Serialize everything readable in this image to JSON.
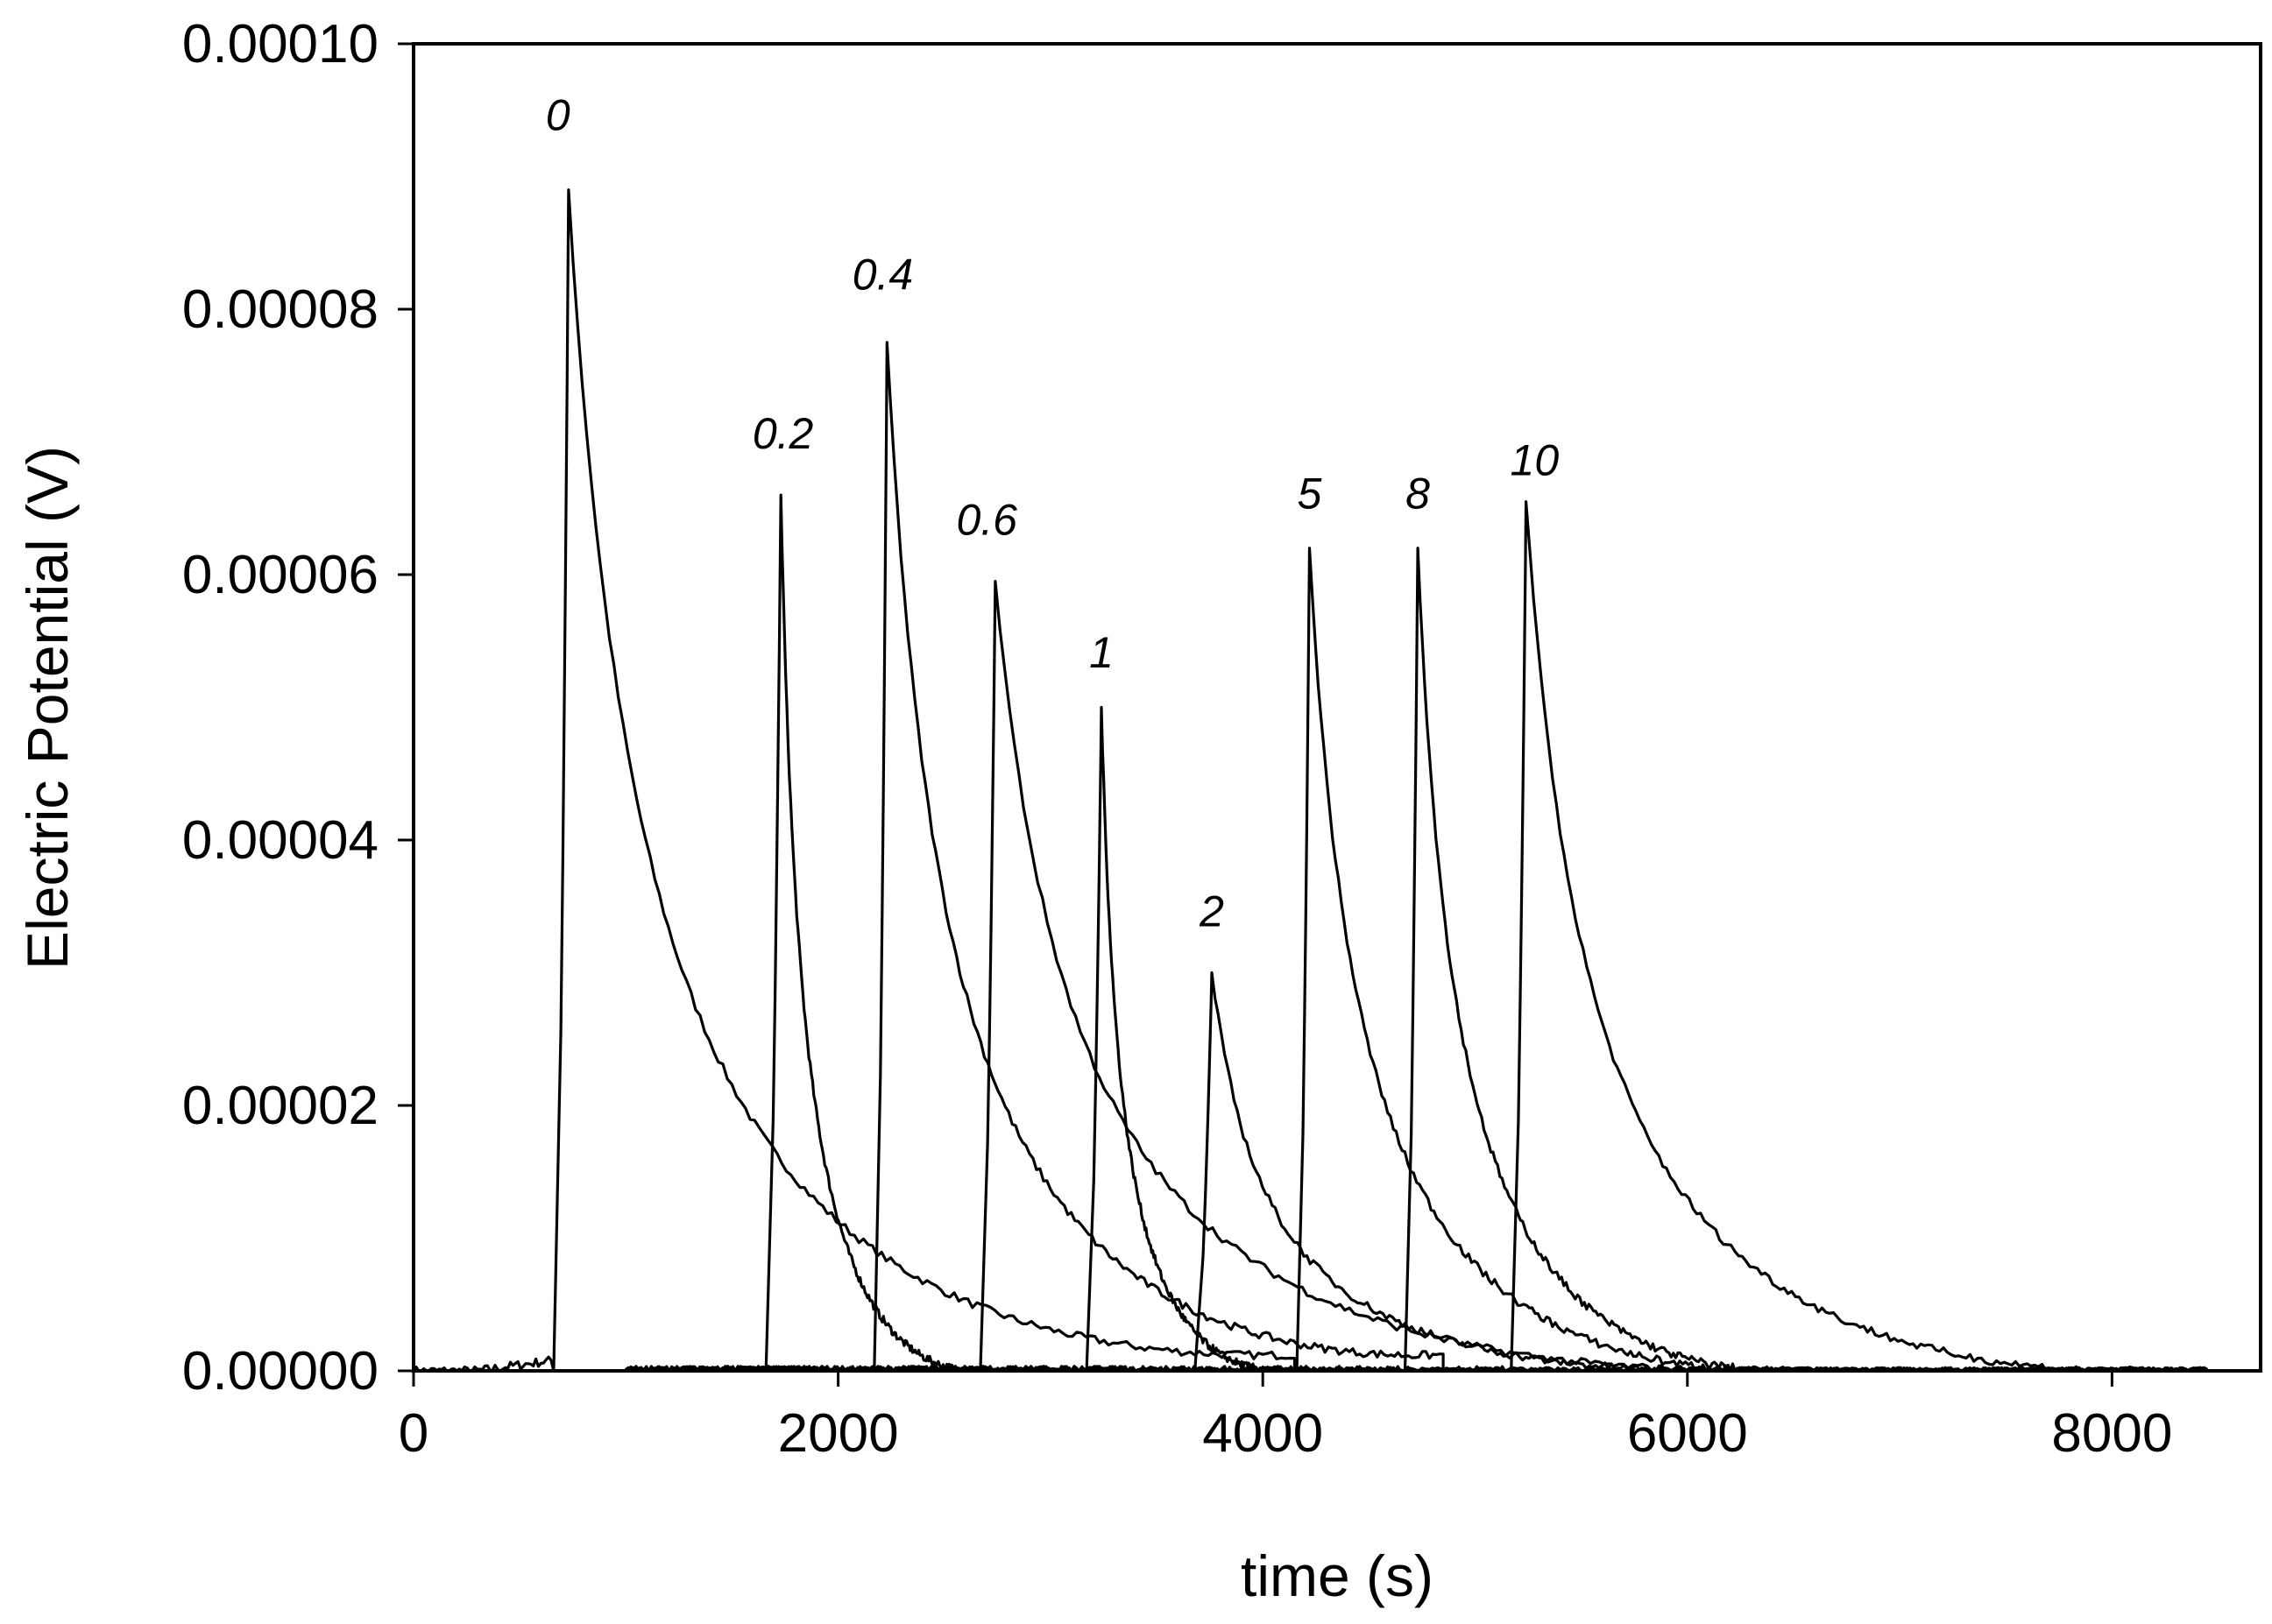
{
  "chart_data": {
    "type": "line",
    "title": "",
    "xlabel": "time (s)",
    "ylabel": "Electric Potential (V)",
    "xlim": [
      0,
      8700
    ],
    "ylim": [
      0,
      0.0001
    ],
    "x_ticks": [
      0,
      2000,
      4000,
      6000,
      8000
    ],
    "x_tick_labels": [
      "0",
      "2000",
      "4000",
      "6000",
      "8000"
    ],
    "y_ticks": [
      0,
      2e-05,
      4e-05,
      6e-05,
      8e-05,
      0.0001
    ],
    "y_tick_labels": [
      "0.00000",
      "0.00002",
      "0.00004",
      "0.00006",
      "0.00008",
      "0.00010"
    ],
    "grid": false,
    "legend": "none",
    "series": [
      {
        "name": "0",
        "rise_time": 660,
        "peak_time": 730,
        "peak_value": 8.9e-05,
        "end_time": 4150,
        "tail_value_at_end": 1.2e-06
      },
      {
        "name": "0.2",
        "rise_time": 1660,
        "peak_time": 1730,
        "peak_value": 6.6e-05,
        "end_time": 2650,
        "tail_value_at_end": 0.0
      },
      {
        "name": "0.4",
        "rise_time": 2170,
        "peak_time": 2230,
        "peak_value": 7.75e-05,
        "end_time": 4850,
        "tail_value_at_end": 1.2e-06
      },
      {
        "name": "0.6",
        "rise_time": 2670,
        "peak_time": 2740,
        "peak_value": 5.95e-05,
        "end_time": 6300,
        "tail_value_at_end": 0.0
      },
      {
        "name": "1",
        "rise_time": 3170,
        "peak_time": 3240,
        "peak_value": 5e-05,
        "end_time": 4080,
        "tail_value_at_end": 0.0
      },
      {
        "name": "2",
        "rise_time": 3680,
        "peak_time": 3760,
        "peak_value": 3e-05,
        "end_time": 6150,
        "tail_value_at_end": 0.0
      },
      {
        "name": "5",
        "rise_time": 4160,
        "peak_time": 4220,
        "peak_value": 6.2e-05,
        "end_time": 6400,
        "tail_value_at_end": 0.0
      },
      {
        "name": "8",
        "rise_time": 4670,
        "peak_time": 4730,
        "peak_value": 6.2e-05,
        "end_time": 6450,
        "tail_value_at_end": 0.0
      },
      {
        "name": "10",
        "rise_time": 5170,
        "peak_time": 5240,
        "peak_value": 6.55e-05,
        "end_time": 8100,
        "tail_value_at_end": 0.0
      }
    ],
    "peak_labels": [
      {
        "text": "0",
        "x": 680,
        "y": 9.35e-05
      },
      {
        "text": "0.2",
        "x": 1740,
        "y": 6.95e-05
      },
      {
        "text": "0.4",
        "x": 2210,
        "y": 8.15e-05
      },
      {
        "text": "0.6",
        "x": 2700,
        "y": 6.3e-05
      },
      {
        "text": "1",
        "x": 3240,
        "y": 5.3e-05
      },
      {
        "text": "2",
        "x": 3760,
        "y": 3.35e-05
      },
      {
        "text": "5",
        "x": 4220,
        "y": 6.5e-05
      },
      {
        "text": "8",
        "x": 4730,
        "y": 6.5e-05
      },
      {
        "text": "10",
        "x": 5280,
        "y": 6.75e-05
      }
    ]
  }
}
